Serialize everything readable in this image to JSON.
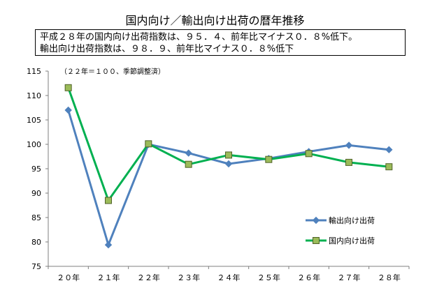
{
  "title": "国内向け／輸出向け出荷の暦年推移",
  "note": {
    "lines": [
      "平成２８年の国内向け出荷指数は、９５．４、前年比マイナス０．８%低下。",
      "輸出向け出荷指数は、９８．９、前年比マイナス０．８%低下"
    ]
  },
  "chart_data": {
    "type": "line",
    "annotation": "（２２年＝１００、季節調整済）",
    "categories": [
      "２０年",
      "２１年",
      "２２年",
      "２３年",
      "２４年",
      "２５年",
      "２６年",
      "２７年",
      "２８年"
    ],
    "ylim": [
      75,
      115
    ],
    "yticks": [
      75,
      80,
      85,
      90,
      95,
      100,
      105,
      110,
      115
    ],
    "grid": false,
    "legend_position": "right",
    "series": [
      {
        "name": "輸出向け出荷",
        "color": "#4f81bd",
        "marker": "diamond",
        "values": [
          107.0,
          79.4,
          100.0,
          98.2,
          96.0,
          97.1,
          98.5,
          99.8,
          98.9
        ]
      },
      {
        "name": "国内向け出荷",
        "color": "#00b050",
        "marker": "square",
        "marker_fill": "#9bbb59",
        "values": [
          111.6,
          88.5,
          100.1,
          95.9,
          97.8,
          96.9,
          98.1,
          96.3,
          95.4
        ]
      }
    ]
  }
}
